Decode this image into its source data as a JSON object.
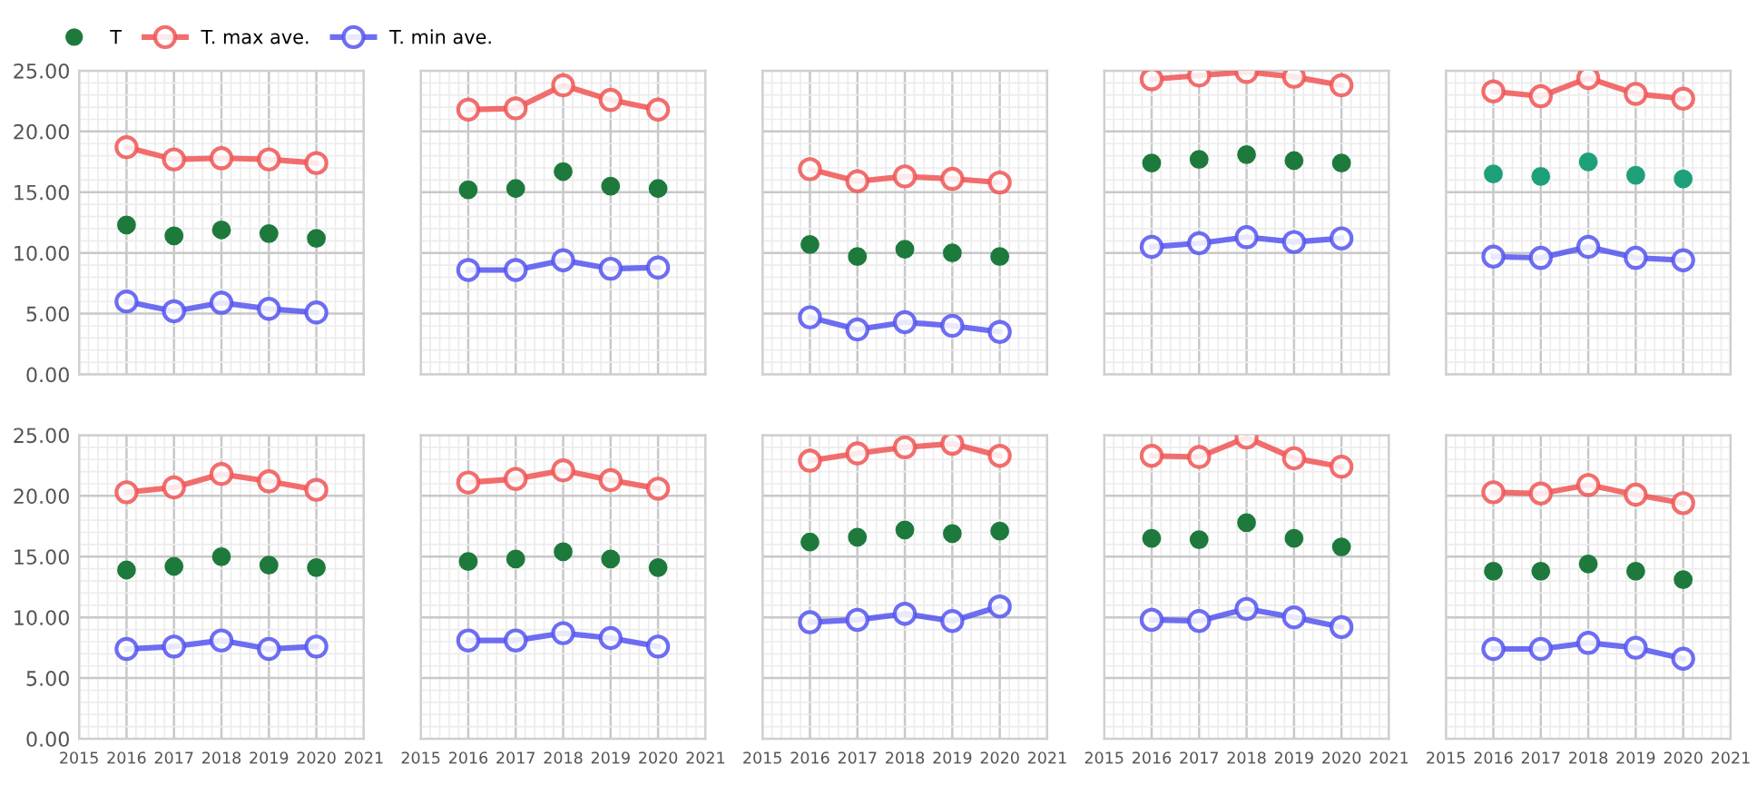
{
  "chart_data": [
    {
      "type": "line",
      "x": [
        2016,
        2017,
        2018,
        2019,
        2020
      ],
      "xlim": [
        2015,
        2021
      ],
      "xticks": [
        2015,
        2016,
        2017,
        2018,
        2019,
        2020,
        2021
      ],
      "ylim": [
        0,
        25
      ],
      "yticks": [
        {
          "value": 0,
          "label": "0.00"
        },
        {
          "value": 5,
          "label": "5.00"
        },
        {
          "value": 10,
          "label": "10.00"
        },
        {
          "value": 15,
          "label": "15.00"
        },
        {
          "value": 20,
          "label": "20.00"
        },
        {
          "value": 25,
          "label": "25.00"
        }
      ],
      "grid": true,
      "marker": "circle",
      "tick_labels": "y",
      "legend": "top",
      "series": [
        {
          "name": "T",
          "type": "scatter",
          "color": "#1e7a3c",
          "values": [
            12.3,
            11.4,
            11.9,
            11.6,
            11.2
          ]
        },
        {
          "name": "T. max ave.",
          "color": "#f05555",
          "values": [
            18.7,
            17.7,
            17.8,
            17.7,
            17.4
          ]
        },
        {
          "name": "T. min ave.",
          "color": "#5555f0",
          "values": [
            6.0,
            5.2,
            5.9,
            5.4,
            5.1
          ]
        }
      ]
    },
    {
      "type": "line",
      "x": [
        2016,
        2017,
        2018,
        2019,
        2020
      ],
      "xlim": [
        2015,
        2021
      ],
      "xticks": [
        2015,
        2016,
        2017,
        2018,
        2019,
        2020,
        2021
      ],
      "ylim": [
        0,
        25
      ],
      "yticks": [
        0,
        5,
        10,
        15,
        20,
        25
      ],
      "grid": true,
      "marker": "circle",
      "tick_labels": false,
      "series": [
        {
          "type": "scatter",
          "color": "#1e7a3c",
          "values": [
            15.2,
            15.3,
            16.7,
            15.5,
            15.3
          ]
        },
        {
          "color": "#f05555",
          "values": [
            21.8,
            21.9,
            23.8,
            22.6,
            21.8
          ]
        },
        {
          "color": "#5555f0",
          "values": [
            8.6,
            8.6,
            9.4,
            8.7,
            8.8
          ]
        }
      ]
    },
    {
      "type": "line",
      "x": [
        2016,
        2017,
        2018,
        2019,
        2020
      ],
      "xlim": [
        2015,
        2021
      ],
      "xticks": [
        2015,
        2016,
        2017,
        2018,
        2019,
        2020,
        2021
      ],
      "ylim": [
        0,
        25
      ],
      "yticks": [
        0,
        5,
        10,
        15,
        20,
        25
      ],
      "grid": true,
      "marker": "circle",
      "tick_labels": false,
      "series": [
        {
          "type": "scatter",
          "color": "#1e7a3c",
          "values": [
            10.7,
            9.7,
            10.3,
            10.0,
            9.7
          ]
        },
        {
          "color": "#f05555",
          "values": [
            16.9,
            15.9,
            16.3,
            16.1,
            15.8
          ]
        },
        {
          "color": "#5555f0",
          "values": [
            4.7,
            3.7,
            4.3,
            4.0,
            3.5
          ]
        }
      ]
    },
    {
      "type": "line",
      "x": [
        2016,
        2017,
        2018,
        2019,
        2020
      ],
      "xlim": [
        2015,
        2021
      ],
      "xticks": [
        2015,
        2016,
        2017,
        2018,
        2019,
        2020,
        2021
      ],
      "ylim": [
        0,
        25
      ],
      "yticks": [
        0,
        5,
        10,
        15,
        20,
        25
      ],
      "grid": true,
      "marker": "circle",
      "tick_labels": false,
      "series": [
        {
          "type": "scatter",
          "color": "#1e7a3c",
          "values": [
            17.4,
            17.7,
            18.1,
            17.6,
            17.4
          ]
        },
        {
          "color": "#f05555",
          "values": [
            24.3,
            24.6,
            24.9,
            24.5,
            23.8
          ]
        },
        {
          "color": "#5555f0",
          "values": [
            10.5,
            10.8,
            11.3,
            10.9,
            11.2
          ]
        }
      ]
    },
    {
      "type": "line",
      "x": [
        2016,
        2017,
        2018,
        2019,
        2020
      ],
      "xlim": [
        2015,
        2021
      ],
      "xticks": [
        2015,
        2016,
        2017,
        2018,
        2019,
        2020,
        2021
      ],
      "ylim": [
        0,
        25
      ],
      "yticks": [
        0,
        5,
        10,
        15,
        20,
        25
      ],
      "grid": true,
      "marker": "circle",
      "tick_labels": false,
      "series": [
        {
          "type": "scatter",
          "color": "#1ea07a",
          "values": [
            16.5,
            16.3,
            17.5,
            16.4,
            16.1
          ]
        },
        {
          "color": "#f05555",
          "values": [
            23.3,
            22.9,
            24.4,
            23.1,
            22.7
          ]
        },
        {
          "color": "#5555f0",
          "values": [
            9.7,
            9.6,
            10.5,
            9.6,
            9.4
          ]
        }
      ]
    },
    {
      "type": "line",
      "x": [
        2016,
        2017,
        2018,
        2019,
        2020
      ],
      "xlim": [
        2015,
        2021
      ],
      "xticks": [
        2015,
        2016,
        2017,
        2018,
        2019,
        2020,
        2021
      ],
      "ylim": [
        0,
        25
      ],
      "yticks": [
        {
          "value": 0,
          "label": "0.00"
        },
        {
          "value": 5,
          "label": "5.00"
        },
        {
          "value": 10,
          "label": "10.00"
        },
        {
          "value": 15,
          "label": "15.00"
        },
        {
          "value": 20,
          "label": "20.00"
        },
        {
          "value": 25,
          "label": "25.00"
        }
      ],
      "grid": true,
      "marker": "circle",
      "series": [
        {
          "type": "scatter",
          "color": "#1e7a3c",
          "values": [
            13.9,
            14.2,
            15.0,
            14.3,
            14.1
          ]
        },
        {
          "color": "#f05555",
          "values": [
            20.3,
            20.7,
            21.8,
            21.2,
            20.5
          ]
        },
        {
          "color": "#5555f0",
          "values": [
            7.4,
            7.6,
            8.1,
            7.4,
            7.6
          ]
        }
      ]
    },
    {
      "type": "line",
      "x": [
        2016,
        2017,
        2018,
        2019,
        2020
      ],
      "xlim": [
        2015,
        2021
      ],
      "xticks": [
        2015,
        2016,
        2017,
        2018,
        2019,
        2020,
        2021
      ],
      "ylim": [
        0,
        25
      ],
      "yticks": [
        0,
        5,
        10,
        15,
        20,
        25
      ],
      "grid": true,
      "marker": "circle",
      "tick_labels": "x",
      "series": [
        {
          "type": "scatter",
          "color": "#1e7a3c",
          "values": [
            14.6,
            14.8,
            15.4,
            14.8,
            14.1
          ]
        },
        {
          "color": "#f05555",
          "values": [
            21.1,
            21.4,
            22.1,
            21.3,
            20.6
          ]
        },
        {
          "color": "#5555f0",
          "values": [
            8.1,
            8.1,
            8.7,
            8.3,
            7.6
          ]
        }
      ]
    },
    {
      "type": "line",
      "x": [
        2016,
        2017,
        2018,
        2019,
        2020
      ],
      "xlim": [
        2015,
        2021
      ],
      "xticks": [
        2015,
        2016,
        2017,
        2018,
        2019,
        2020,
        2021
      ],
      "ylim": [
        0,
        25
      ],
      "yticks": [
        0,
        5,
        10,
        15,
        20,
        25
      ],
      "grid": true,
      "marker": "circle",
      "tick_labels": "x",
      "series": [
        {
          "type": "scatter",
          "color": "#1e7a3c",
          "values": [
            16.2,
            16.6,
            17.2,
            16.9,
            17.1
          ]
        },
        {
          "color": "#f05555",
          "values": [
            22.9,
            23.5,
            24.0,
            24.3,
            23.3
          ]
        },
        {
          "color": "#5555f0",
          "values": [
            9.6,
            9.8,
            10.3,
            9.7,
            10.9
          ]
        }
      ]
    },
    {
      "type": "line",
      "x": [
        2016,
        2017,
        2018,
        2019,
        2020
      ],
      "xlim": [
        2015,
        2021
      ],
      "xticks": [
        2015,
        2016,
        2017,
        2018,
        2019,
        2020,
        2021
      ],
      "ylim": [
        0,
        25
      ],
      "yticks": [
        0,
        5,
        10,
        15,
        20,
        25
      ],
      "grid": true,
      "marker": "circle",
      "tick_labels": "x",
      "series": [
        {
          "type": "scatter",
          "color": "#1e7a3c",
          "values": [
            16.5,
            16.4,
            17.8,
            16.5,
            15.8
          ]
        },
        {
          "color": "#f05555",
          "values": [
            23.3,
            23.2,
            24.8,
            23.1,
            22.4
          ]
        },
        {
          "color": "#5555f0",
          "values": [
            9.8,
            9.7,
            10.7,
            10.0,
            9.2
          ]
        }
      ]
    },
    {
      "type": "line",
      "x": [
        2016,
        2017,
        2018,
        2019,
        2020
      ],
      "xlim": [
        2015,
        2021
      ],
      "xticks": [
        2015,
        2016,
        2017,
        2018,
        2019,
        2020,
        2021
      ],
      "ylim": [
        0,
        25
      ],
      "yticks": [
        0,
        5,
        10,
        15,
        20,
        25
      ],
      "grid": true,
      "marker": "circle",
      "tick_labels": "x",
      "series": [
        {
          "type": "scatter",
          "color": "#1e7a3c",
          "values": [
            13.8,
            13.8,
            14.4,
            13.8,
            13.1
          ]
        },
        {
          "color": "#f05555",
          "values": [
            20.3,
            20.2,
            20.9,
            20.1,
            19.4
          ]
        },
        {
          "color": "#5555f0",
          "values": [
            7.4,
            7.4,
            7.9,
            7.5,
            6.6
          ]
        }
      ]
    }
  ]
}
